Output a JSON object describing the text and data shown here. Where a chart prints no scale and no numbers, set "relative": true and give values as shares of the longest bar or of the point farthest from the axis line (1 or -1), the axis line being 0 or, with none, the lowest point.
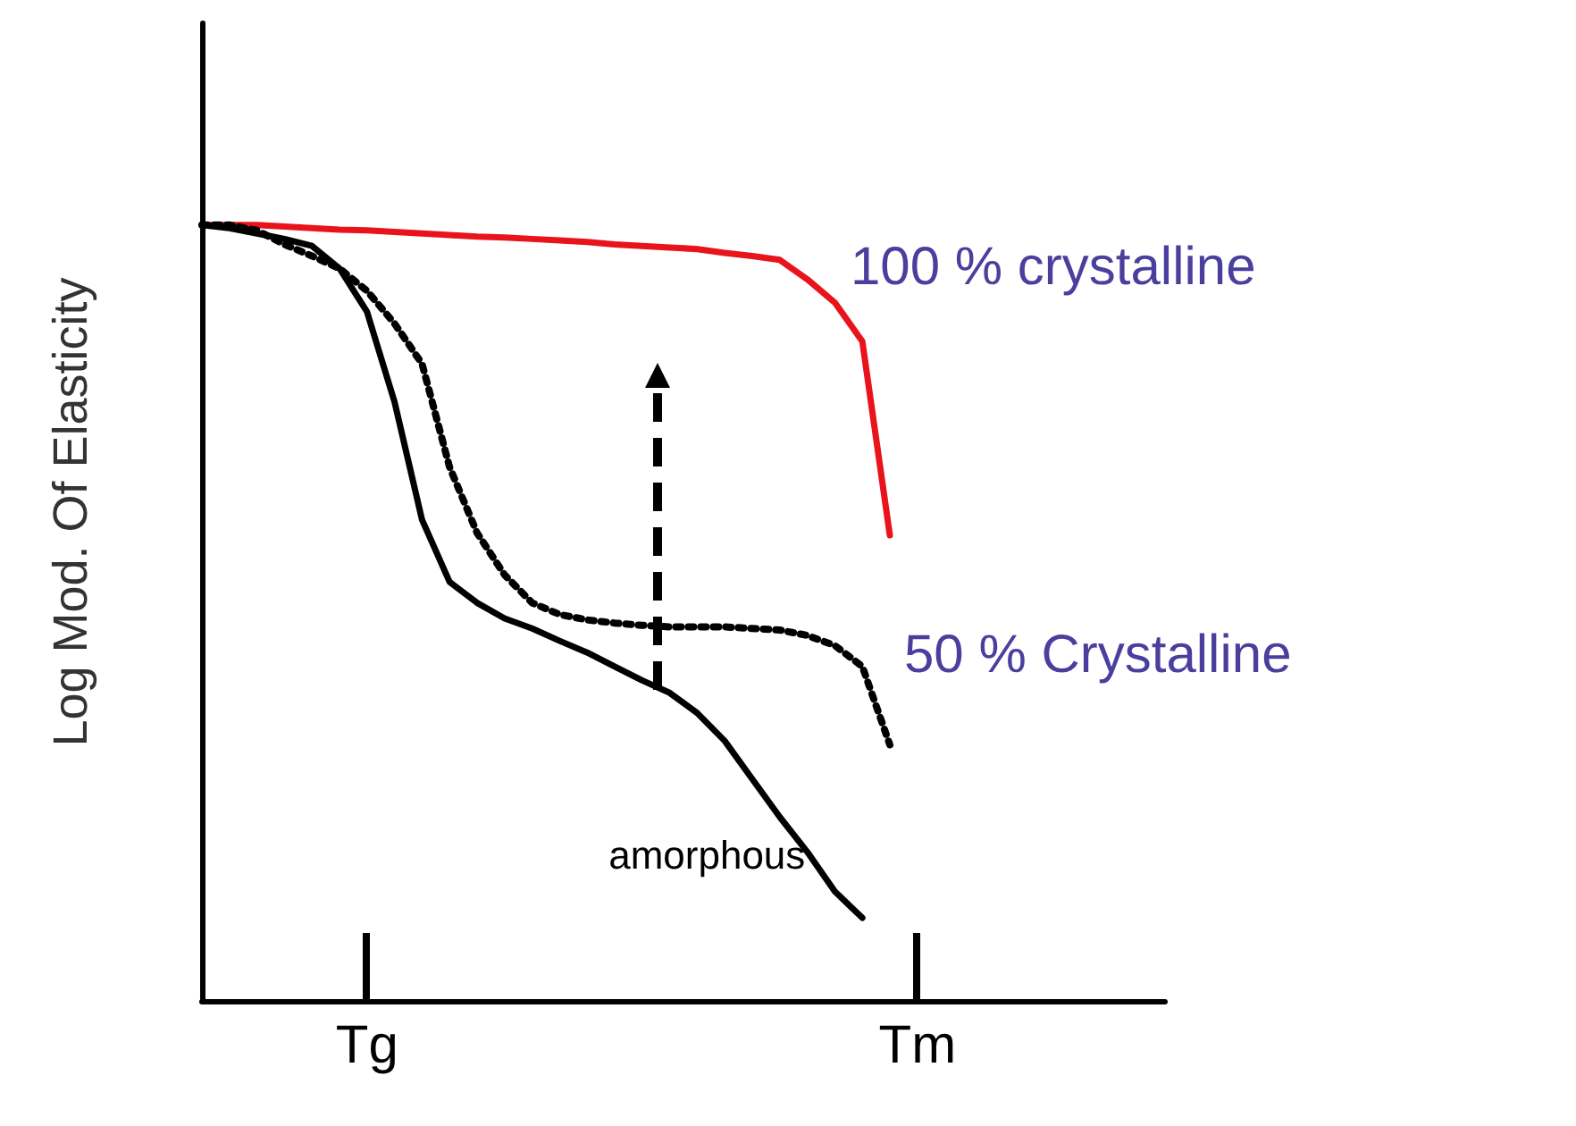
{
  "chart_data": {
    "type": "line",
    "relative": true,
    "ylabel": "Log Mod. Of Elasticity",
    "tick_labels": "x",
    "grid": false,
    "legend": false,
    "marker": "none",
    "categories": [
      null,
      null,
      null,
      null,
      null,
      null,
      "Tg",
      null,
      null,
      null,
      null,
      null,
      null,
      null,
      null,
      null,
      null,
      null,
      null,
      null,
      null,
      null,
      null,
      null,
      null,
      null,
      "Tm",
      null,
      null,
      null,
      null,
      null,
      null,
      null,
      null,
      null
    ],
    "series": [
      {
        "name": "100 % crystalline",
        "color": "#e8131b",
        "line_style": "solid",
        "values": [
          1.0,
          1.0,
          1.0,
          0.998,
          0.996,
          0.994,
          0.993,
          0.991,
          0.989,
          0.987,
          0.985,
          0.984,
          0.982,
          0.98,
          0.978,
          0.975,
          0.973,
          0.971,
          0.969,
          0.964,
          0.96,
          0.955,
          0.93,
          0.9,
          0.85,
          0.6,
          null,
          null,
          null,
          null,
          null,
          null,
          null,
          null,
          null,
          null
        ]
      },
      {
        "name": "50 % Crystalline",
        "color": "#000000",
        "line_style": "dotted",
        "values": [
          1.0,
          1.0,
          0.993,
          0.975,
          0.96,
          0.944,
          0.915,
          0.873,
          0.821,
          0.688,
          0.603,
          0.549,
          0.513,
          0.498,
          0.491,
          0.487,
          0.484,
          0.482,
          0.482,
          0.482,
          0.48,
          0.478,
          0.471,
          0.458,
          0.431,
          0.33,
          null,
          null,
          null,
          null,
          null,
          null,
          null,
          null,
          null,
          null
        ]
      },
      {
        "name": "amorphous",
        "color": "#000000",
        "line_style": "solid",
        "values": [
          1.0,
          0.996,
          0.989,
          0.982,
          0.973,
          0.944,
          0.888,
          0.772,
          0.62,
          0.54,
          0.513,
          0.493,
          0.48,
          0.464,
          0.449,
          0.431,
          0.413,
          0.397,
          0.371,
          0.335,
          0.286,
          0.237,
          0.192,
          0.141,
          0.107,
          null,
          null,
          null,
          null,
          null,
          null,
          null,
          null,
          null,
          null,
          null
        ]
      }
    ]
  }
}
